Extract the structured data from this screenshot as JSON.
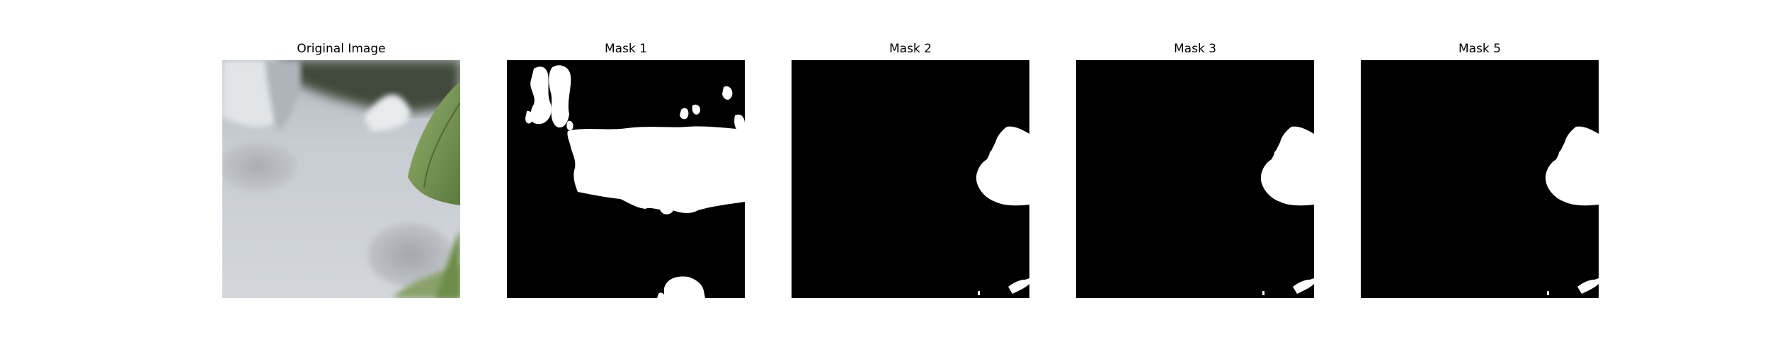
{
  "panels": [
    {
      "title": "Original Image",
      "kind": "photo"
    },
    {
      "title": "Mask 1",
      "kind": "mask"
    },
    {
      "title": "Mask 2",
      "kind": "mask"
    },
    {
      "title": "Mask 3",
      "kind": "mask"
    },
    {
      "title": "Mask 5",
      "kind": "mask"
    }
  ],
  "colors": {
    "background": "#ffffff",
    "mask_background": "#000000",
    "mask_foreground": "#ffffff",
    "photo_gray": "#c9cdd2",
    "photo_leaf": "#7a9a55"
  }
}
